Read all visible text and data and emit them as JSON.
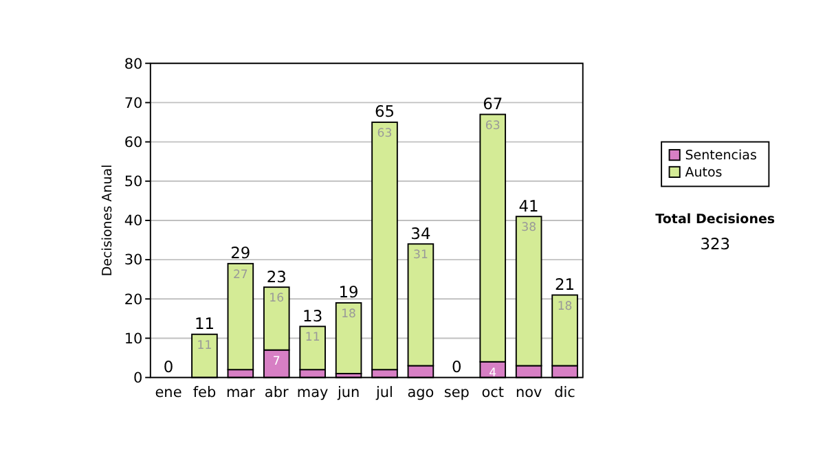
{
  "chart_data": {
    "type": "bar",
    "stacked": true,
    "ylabel": "Decisiones Anual",
    "categories": [
      "ene",
      "feb",
      "mar",
      "abr",
      "may",
      "jun",
      "jul",
      "ago",
      "sep",
      "oct",
      "nov",
      "dic"
    ],
    "series": [
      {
        "name": "Sentencias",
        "color": "#d77fc4",
        "values": [
          0,
          0,
          2,
          7,
          2,
          1,
          2,
          3,
          0,
          4,
          3,
          3
        ],
        "value_labels": [
          null,
          null,
          null,
          "7",
          null,
          null,
          null,
          null,
          null,
          "4",
          null,
          null
        ]
      },
      {
        "name": "Autos",
        "color": "#d4eb96",
        "values": [
          0,
          11,
          27,
          16,
          11,
          18,
          63,
          31,
          0,
          63,
          38,
          18
        ],
        "value_labels": [
          null,
          "11",
          "27",
          "16",
          "11",
          "18",
          "63",
          "31",
          null,
          "63",
          "38",
          "18"
        ]
      }
    ],
    "totals": [
      "0",
      "11",
      "29",
      "23",
      "13",
      "19",
      "65",
      "34",
      "0",
      "67",
      "41",
      "21"
    ],
    "ylim": [
      0,
      80
    ],
    "yticks": [
      0,
      10,
      20,
      30,
      40,
      50,
      60,
      70,
      80
    ],
    "grid": "y",
    "legend": "right",
    "annotations": [
      "Total Decisiones",
      "323"
    ]
  }
}
